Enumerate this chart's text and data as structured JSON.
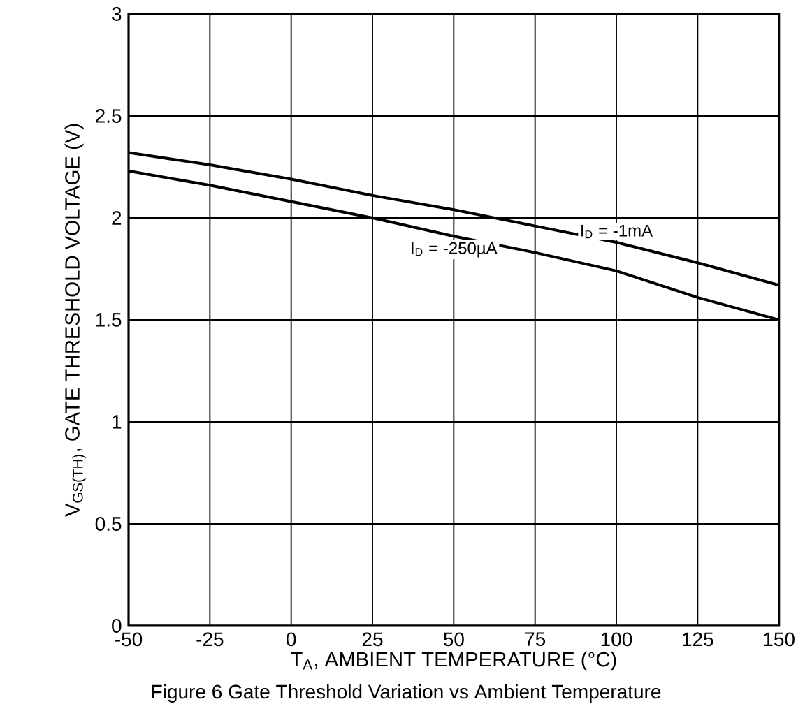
{
  "chart_data": {
    "type": "line",
    "xlabel": "T$_{A}$, AMBIENT TEMPERATURE (°C)",
    "ylabel": "V$_{GS(TH)}$, GATE THRESHOLD VOLTAGE (V)",
    "x": [
      -50,
      -25,
      0,
      25,
      50,
      75,
      100,
      125,
      150
    ],
    "series": [
      {
        "name": "I$_{D}$ = -1mA",
        "color": "#000000",
        "values": [
          2.32,
          2.26,
          2.19,
          2.11,
          2.04,
          1.96,
          1.88,
          1.78,
          1.67
        ]
      },
      {
        "name": "I$_{D}$ = -250µA",
        "color": "#000000",
        "values": [
          2.23,
          2.16,
          2.08,
          2.0,
          1.91,
          1.83,
          1.74,
          1.61,
          1.5
        ]
      }
    ],
    "xlim": [
      -50,
      150
    ],
    "ylim": [
      0,
      3
    ],
    "xticks": [
      -50,
      -25,
      0,
      25,
      50,
      75,
      100,
      125,
      150
    ],
    "yticks": [
      0,
      0.5,
      1,
      1.5,
      2,
      2.5,
      3
    ],
    "grid": true,
    "legend": false,
    "marker": "none",
    "line_style": "solid",
    "annotations": [
      "Figure 6 Gate Threshold Variation vs Ambient Temperature"
    ]
  }
}
